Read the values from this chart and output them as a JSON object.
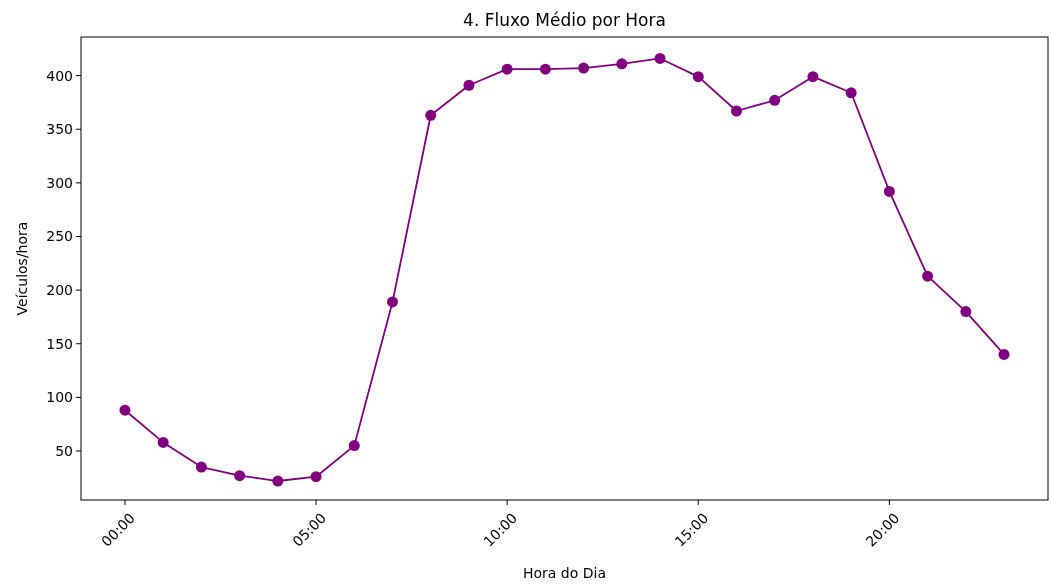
{
  "chart_data": {
    "type": "line",
    "title": "4. Fluxo Médio por Hora",
    "xlabel": "Hora do Dia",
    "ylabel": "Veículos/hora",
    "x": [
      0,
      1,
      2,
      3,
      4,
      5,
      6,
      7,
      8,
      9,
      10,
      11,
      12,
      13,
      14,
      15,
      16,
      17,
      18,
      19,
      20,
      21,
      22,
      23
    ],
    "series": [
      {
        "color": "#800080",
        "values": [
          88,
          58,
          35,
          27,
          22,
          26,
          55,
          189,
          363,
          391,
          406,
          406,
          407,
          411,
          416,
          399,
          367,
          377,
          399,
          384,
          292,
          213,
          180,
          140
        ]
      }
    ],
    "xlim": [
      -1.15,
      24.15
    ],
    "xticks": [
      {
        "value": 0,
        "label": "00:00"
      },
      {
        "value": 5,
        "label": "05:00"
      },
      {
        "value": 10,
        "label": "10:00"
      },
      {
        "value": 15,
        "label": "15:00"
      },
      {
        "value": 20,
        "label": "20:00"
      }
    ],
    "ylim": [
      4.3,
      436
    ],
    "yticks": [
      50,
      100,
      150,
      200,
      250,
      300,
      350,
      400
    ],
    "marker": "circle",
    "line_style": "solid"
  }
}
